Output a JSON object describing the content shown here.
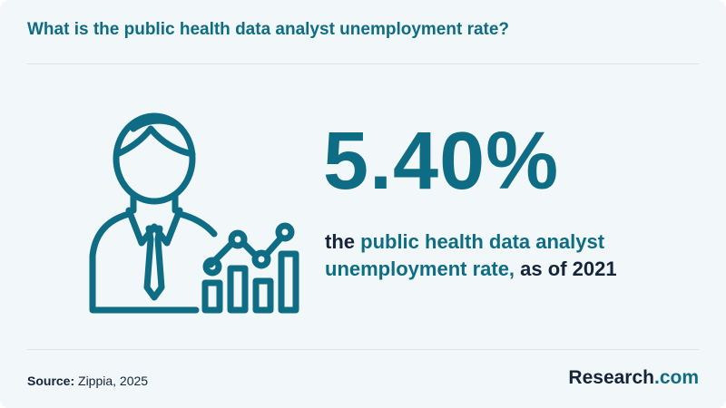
{
  "header": {
    "title": "What is the public health data analyst unemployment rate?"
  },
  "stat": {
    "value": "5.40%",
    "description": {
      "prefix": "the",
      "highlight": "public health data analyst unemployment rate,",
      "suffix": "as of 2021"
    }
  },
  "illustration": {
    "icon": "person-with-growth-chart-icon"
  },
  "footer": {
    "source_label": "Source:",
    "source_value": "Zippia, 2025",
    "brand_name": "Research",
    "brand_suffix": ".com"
  },
  "colors": {
    "accent": "#0e6d84",
    "text_dark": "#14243a",
    "background": "#f2f7f9",
    "divider": "#dde4e7"
  }
}
